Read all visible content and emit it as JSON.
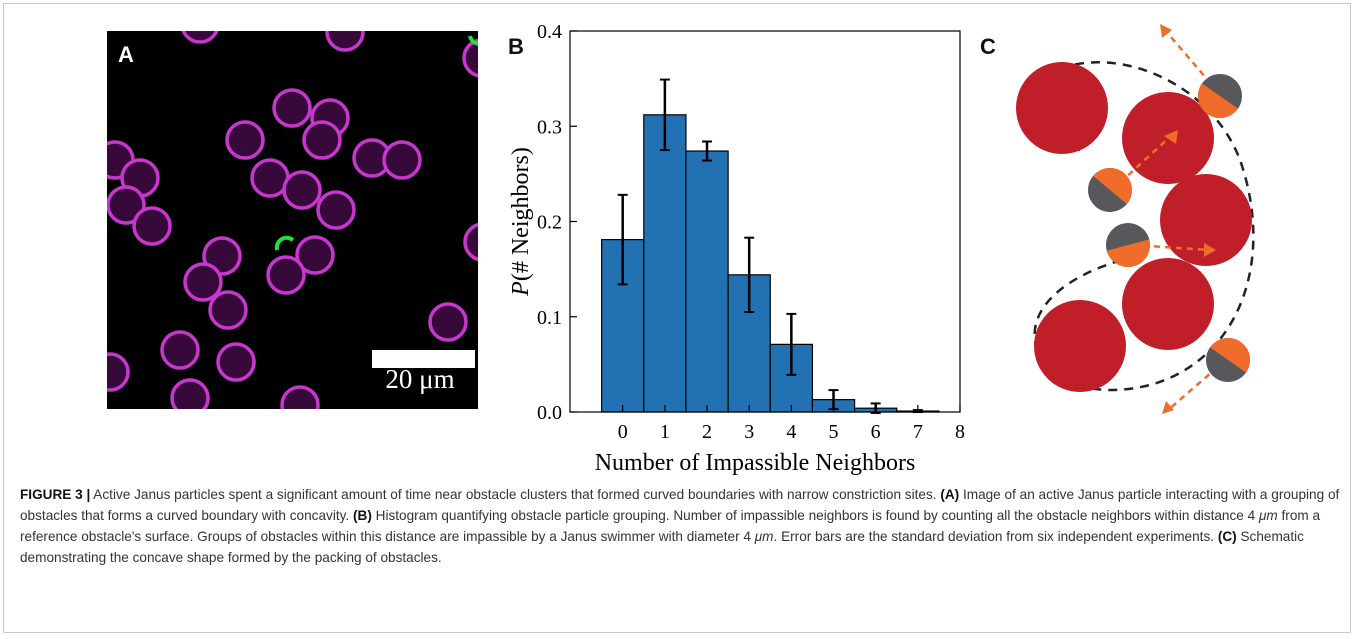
{
  "panel_labels": [
    "A",
    "B",
    "C"
  ],
  "panel_a": {
    "scale_bar_label": "20 μm"
  },
  "chart_data": {
    "type": "bar",
    "x": [
      0,
      1,
      2,
      3,
      4,
      5,
      6,
      7
    ],
    "values": [
      0.181,
      0.312,
      0.274,
      0.144,
      0.071,
      0.013,
      0.004,
      0.001
    ],
    "errors": [
      0.047,
      0.037,
      0.01,
      0.039,
      0.032,
      0.01,
      0.005,
      0.001
    ],
    "color": "#2271b3",
    "xlim": [
      -1.25,
      8
    ],
    "xticks": [
      0,
      1,
      2,
      3,
      4,
      5,
      6,
      7,
      8
    ],
    "ylim": [
      0,
      0.4
    ],
    "yticks": [
      {
        "value": 0,
        "label": "0.0"
      },
      0.1,
      0.2,
      0.3,
      0.4
    ],
    "xlabel": "Number of Impassible Neighbors",
    "ylabel": [
      "P",
      "(# Neighbors)"
    ]
  },
  "caption": [
    {
      "style": "bold",
      "text": "FIGURE 3 |"
    },
    {
      "style": "normal",
      "text": " Active Janus particles spent a significant amount of time near obstacle clusters that formed curved boundaries with narrow constriction sites. "
    },
    {
      "style": "bold",
      "text": "(A)"
    },
    {
      "style": "normal",
      "text": " Image of an active Janus particle interacting with a grouping of obstacles that forms a curved boundary with concavity. "
    },
    {
      "style": "bold",
      "text": "(B)"
    },
    {
      "style": "normal",
      "text": " Histogram quantifying obstacle particle grouping. Number of impassible neighbors is found by counting all the obstacle neighbors within distance 4 "
    },
    {
      "style": "italic",
      "text": "μm"
    },
    {
      "style": "normal",
      "text": " from a reference obstacle's surface. Groups of obstacles within this distance are impassible by a Janus swimmer with diameter 4 "
    },
    {
      "style": "italic",
      "text": "μm"
    },
    {
      "style": "normal",
      "text": ". Error bars are the standard deviation from six independent experiments. "
    },
    {
      "style": "bold",
      "text": "(C)"
    },
    {
      "style": "normal",
      "text": " Schematic demonstrating the concave shape formed by the packing of obstacles."
    }
  ]
}
